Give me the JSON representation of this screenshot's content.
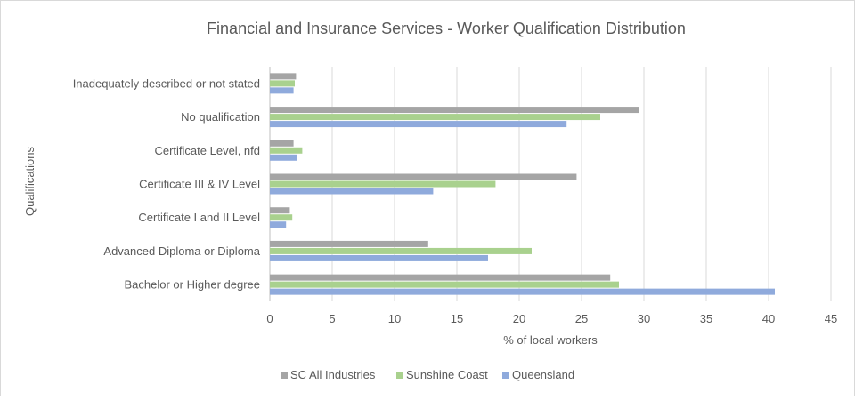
{
  "chart_data": {
    "type": "bar",
    "orientation": "horizontal",
    "title": "Financial and Insurance Services - Worker Qualification Distribution",
    "xlabel": "% of local workers",
    "ylabel": "Qualifications",
    "xlim": [
      0,
      45
    ],
    "xticks": [
      "0",
      "5",
      "10",
      "15",
      "20",
      "25",
      "30",
      "35",
      "40",
      "45"
    ],
    "grid": "vertical",
    "legend_position": "bottom",
    "categories": [
      "Inadequately described or not stated",
      "No qualification",
      "Certificate Level, nfd",
      "Certificate III & IV Level",
      "Certificate I and II Level",
      "Advanced Diploma or Diploma",
      "Bachelor or Higher degree"
    ],
    "series": [
      {
        "name": "SC All Industries",
        "color": "#a5a5a5",
        "values": [
          2.1,
          29.6,
          1.9,
          24.6,
          1.6,
          12.7,
          27.3
        ]
      },
      {
        "name": "Sunshine Coast",
        "color": "#a9d18e",
        "values": [
          2.0,
          26.5,
          2.6,
          18.1,
          1.8,
          21.0,
          28.0
        ]
      },
      {
        "name": "Queensland",
        "color": "#8faadc",
        "values": [
          1.9,
          23.8,
          2.2,
          13.1,
          1.3,
          17.5,
          40.5
        ]
      }
    ]
  }
}
